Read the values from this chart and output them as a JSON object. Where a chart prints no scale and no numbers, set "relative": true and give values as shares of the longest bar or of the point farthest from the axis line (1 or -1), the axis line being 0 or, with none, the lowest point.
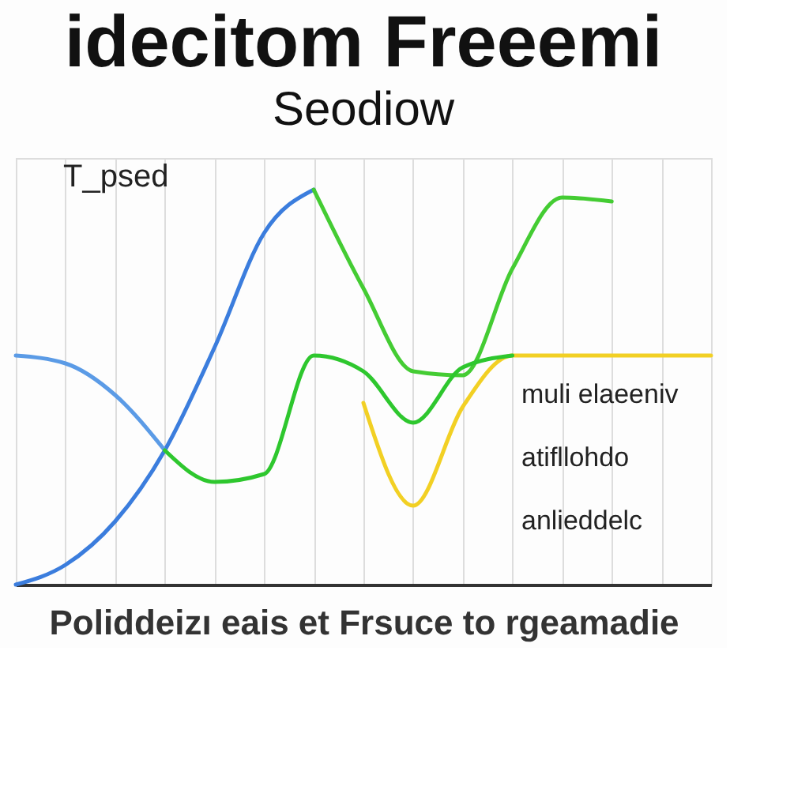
{
  "chart_data": {
    "type": "line",
    "title": "idecitom Freeemi",
    "subtitle": "Seodiow",
    "xlabel": "Poliddeizı eais et Frsuce to rgeamadie",
    "annotations": [
      "T_psed",
      "muli elaeeniv",
      "atifllohdo",
      "anlieddelc"
    ],
    "categories": [
      null,
      null,
      null,
      null,
      null,
      null,
      null,
      null,
      null,
      null,
      null,
      null,
      null,
      null,
      null
    ],
    "relative": true,
    "grid": true,
    "legend": false,
    "marker": "none",
    "line_style": "solid",
    "series": [
      {
        "color": "#3b7ddd",
        "values": [
          0,
          0.05,
          0.16,
          0.34,
          0.6,
          0.89,
          1,
          null,
          null,
          null,
          null,
          null,
          null,
          null,
          null
        ]
      },
      {
        "color": "#5b9be6",
        "values": [
          0.58,
          0.56,
          0.48,
          0.34,
          null,
          null,
          null,
          null,
          null,
          null,
          null,
          null,
          null,
          null,
          null
        ]
      },
      {
        "color": "#44cc33",
        "values": [
          null,
          null,
          null,
          null,
          null,
          null,
          1,
          0.75,
          0.54,
          0.53,
          0.8,
          0.98,
          0.97,
          null,
          null
        ]
      },
      {
        "color": "#f2d024",
        "values": [
          null,
          null,
          null,
          null,
          null,
          null,
          null,
          0.46,
          0.2,
          0.45,
          0.58,
          0.58,
          0.58,
          0.58,
          0.58
        ]
      },
      {
        "color": "#2ec72e",
        "values": [
          null,
          null,
          null,
          0.34,
          0.26,
          0.28,
          0.58,
          0.54,
          0.41,
          0.55,
          0.58,
          null,
          null,
          null,
          null
        ]
      }
    ]
  }
}
